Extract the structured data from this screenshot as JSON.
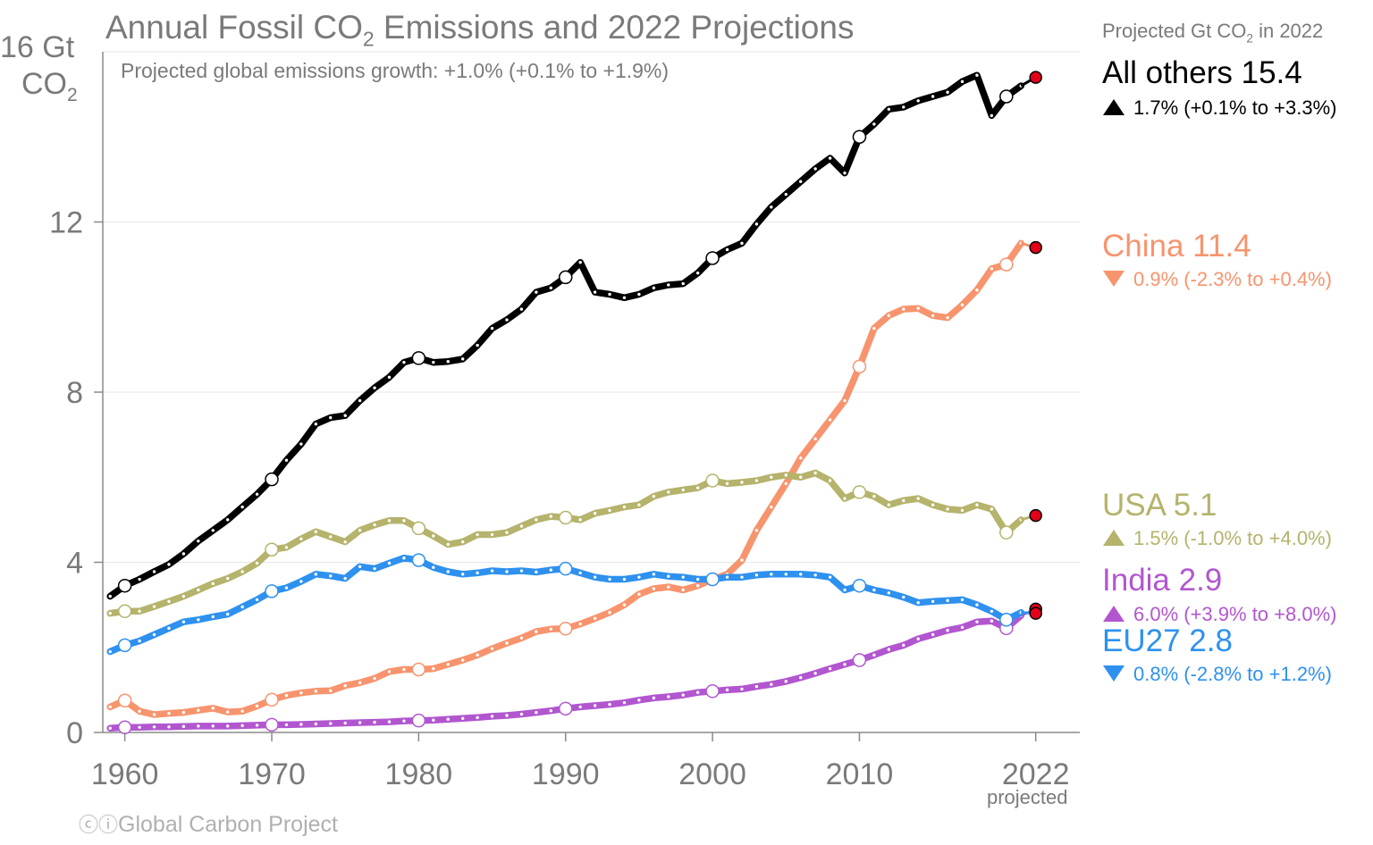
{
  "header": {
    "title_pre": "Annual Fossil CO",
    "title_sub": "2",
    "title_post": " Emissions and 2022 Projections",
    "subtitle": "Projected global emissions growth: +1.0% (+0.1% to +1.9%)",
    "y_unit_1": "16 Gt",
    "y_unit_2_pre": "CO",
    "y_unit_2_sub": "2"
  },
  "panel": {
    "title_pre": "Projected Gt CO",
    "title_sub": "2",
    "title_post": " in 2022",
    "entries": [
      {
        "name": "All others 15.4",
        "growth": "1.7% (+0.1% to +3.3%)",
        "arrow": "up",
        "color": "#000000"
      },
      {
        "name": "China 11.4",
        "growth": "0.9% (-2.3% to +0.4%)",
        "arrow": "down",
        "color": "#f7946e"
      },
      {
        "name": "USA 5.1",
        "growth": "1.5% (-1.0% to +4.0%)",
        "arrow": "up",
        "color": "#b5b36c"
      },
      {
        "name": "India 2.9",
        "growth": "6.0% (+3.9% to +8.0%)",
        "arrow": "up",
        "color": "#b256d0"
      },
      {
        "name": "EU27 2.8",
        "growth": "0.8% (-2.8% to +1.2%)",
        "arrow": "down",
        "color": "#2e91ef"
      }
    ]
  },
  "footer": {
    "cc_glyphs": "ⓒⓘ",
    "credit": "Global Carbon Project",
    "projected_note": "projected"
  },
  "chart_data": {
    "type": "line",
    "title": "Annual Fossil CO2 Emissions and 2022 Projections",
    "ylabel": "16 Gt CO2",
    "xlabel": "",
    "ylim": [
      0,
      16
    ],
    "xlim": [
      1958.5,
      2025
    ],
    "x_ticks": [
      1960,
      1970,
      1980,
      1990,
      2000,
      2010,
      2022
    ],
    "x_tick_labels": [
      "1960",
      "1970",
      "1980",
      "1990",
      "2000",
      "2010",
      "2022"
    ],
    "y_ticks": [
      0,
      4,
      8,
      12
    ],
    "y_tick_labels": [
      "0",
      "4",
      "8",
      "12"
    ],
    "grid": true,
    "x": [
      1959,
      1960,
      1961,
      1962,
      1963,
      1964,
      1965,
      1966,
      1967,
      1968,
      1969,
      1970,
      1971,
      1972,
      1973,
      1974,
      1975,
      1976,
      1977,
      1978,
      1979,
      1980,
      1981,
      1982,
      1983,
      1984,
      1985,
      1986,
      1987,
      1988,
      1989,
      1990,
      1991,
      1992,
      1993,
      1994,
      1995,
      1996,
      1997,
      1998,
      1999,
      2000,
      2001,
      2002,
      2003,
      2004,
      2005,
      2006,
      2007,
      2008,
      2009,
      2010,
      2011,
      2012,
      2013,
      2014,
      2015,
      2016,
      2017,
      2018,
      2019,
      2020,
      2021
    ],
    "projection_x": 2022,
    "series": [
      {
        "name": "All others",
        "color": "#000000",
        "proj_value": 15.4,
        "values": [
          3.2,
          3.45,
          3.6,
          3.78,
          3.95,
          4.2,
          4.5,
          4.75,
          5.0,
          5.3,
          5.6,
          5.95,
          6.4,
          6.78,
          7.25,
          7.4,
          7.45,
          7.8,
          8.1,
          8.35,
          8.7,
          8.8,
          8.7,
          8.72,
          8.78,
          9.1,
          9.5,
          9.7,
          9.95,
          10.35,
          10.45,
          10.7,
          11.05,
          10.35,
          10.3,
          10.22,
          10.3,
          10.45,
          10.52,
          10.55,
          10.8,
          11.15,
          11.35,
          11.5,
          11.95,
          12.35,
          12.65,
          12.95,
          13.25,
          13.5,
          13.15,
          14.0,
          14.3,
          14.65,
          14.7,
          14.85,
          14.95,
          15.05,
          15.3,
          15.45,
          14.5,
          14.95,
          15.2
        ]
      },
      {
        "name": "China",
        "color": "#f7946e",
        "proj_value": 11.4,
        "values": [
          0.6,
          0.75,
          0.5,
          0.42,
          0.45,
          0.47,
          0.52,
          0.57,
          0.48,
          0.5,
          0.62,
          0.77,
          0.87,
          0.93,
          0.97,
          0.98,
          1.1,
          1.17,
          1.27,
          1.43,
          1.48,
          1.48,
          1.5,
          1.6,
          1.7,
          1.82,
          1.97,
          2.1,
          2.22,
          2.37,
          2.43,
          2.44,
          2.55,
          2.68,
          2.82,
          3.0,
          3.25,
          3.38,
          3.42,
          3.35,
          3.45,
          3.6,
          3.72,
          4.05,
          4.75,
          5.3,
          5.85,
          6.45,
          6.9,
          7.35,
          7.8,
          8.6,
          9.5,
          9.8,
          9.95,
          9.97,
          9.8,
          9.75,
          10.05,
          10.4,
          10.9,
          11.0,
          11.5
        ]
      },
      {
        "name": "USA",
        "color": "#b5b36c",
        "proj_value": 5.1,
        "values": [
          2.8,
          2.85,
          2.85,
          2.96,
          3.08,
          3.2,
          3.35,
          3.5,
          3.62,
          3.78,
          3.98,
          4.3,
          4.35,
          4.55,
          4.72,
          4.6,
          4.48,
          4.75,
          4.88,
          4.98,
          4.98,
          4.8,
          4.62,
          4.42,
          4.48,
          4.65,
          4.65,
          4.7,
          4.85,
          5.0,
          5.08,
          5.05,
          5.0,
          5.15,
          5.22,
          5.3,
          5.35,
          5.55,
          5.65,
          5.7,
          5.75,
          5.92,
          5.85,
          5.88,
          5.92,
          6.0,
          6.05,
          6.0,
          6.1,
          5.92,
          5.5,
          5.65,
          5.55,
          5.35,
          5.45,
          5.5,
          5.35,
          5.25,
          5.22,
          5.35,
          5.25,
          4.7,
          5.0
        ]
      },
      {
        "name": "India",
        "color": "#b256d0",
        "proj_value": 2.9,
        "values": [
          0.1,
          0.12,
          0.12,
          0.13,
          0.13,
          0.14,
          0.15,
          0.15,
          0.15,
          0.16,
          0.17,
          0.18,
          0.18,
          0.19,
          0.2,
          0.21,
          0.22,
          0.23,
          0.24,
          0.25,
          0.27,
          0.28,
          0.29,
          0.31,
          0.33,
          0.35,
          0.38,
          0.4,
          0.43,
          0.47,
          0.51,
          0.56,
          0.6,
          0.63,
          0.66,
          0.7,
          0.76,
          0.81,
          0.84,
          0.88,
          0.94,
          0.97,
          1.0,
          1.02,
          1.08,
          1.13,
          1.2,
          1.29,
          1.39,
          1.5,
          1.6,
          1.7,
          1.82,
          1.95,
          2.05,
          2.2,
          2.3,
          2.4,
          2.47,
          2.6,
          2.62,
          2.45,
          2.75
        ]
      },
      {
        "name": "EU27",
        "color": "#2e91ef",
        "proj_value": 2.8,
        "values": [
          1.9,
          2.05,
          2.15,
          2.3,
          2.45,
          2.6,
          2.65,
          2.72,
          2.78,
          2.95,
          3.12,
          3.32,
          3.4,
          3.55,
          3.72,
          3.68,
          3.62,
          3.9,
          3.85,
          3.98,
          4.1,
          4.05,
          3.88,
          3.78,
          3.72,
          3.75,
          3.8,
          3.78,
          3.8,
          3.77,
          3.82,
          3.85,
          3.75,
          3.65,
          3.6,
          3.6,
          3.65,
          3.72,
          3.67,
          3.65,
          3.6,
          3.6,
          3.65,
          3.65,
          3.7,
          3.72,
          3.72,
          3.72,
          3.7,
          3.65,
          3.35,
          3.45,
          3.35,
          3.28,
          3.18,
          3.05,
          3.08,
          3.1,
          3.12,
          3.0,
          2.85,
          2.65,
          2.82
        ]
      }
    ],
    "projection_marker_color": "#e5001a",
    "highlight_years": [
      1960,
      1970,
      1980,
      1990,
      2000,
      2010,
      2020
    ]
  }
}
